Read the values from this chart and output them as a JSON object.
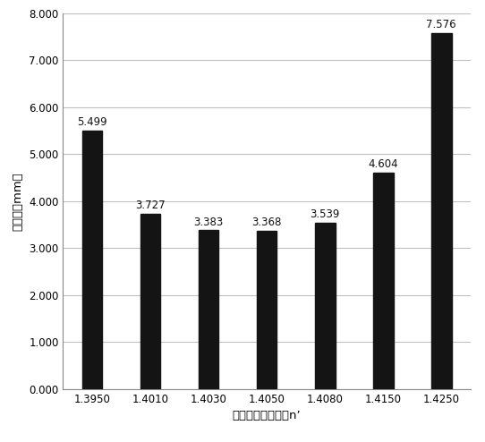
{
  "categories": [
    "1.3950",
    "1.4010",
    "1.4030",
    "1.4050",
    "1.4080",
    "1.4150",
    "1.4250"
  ],
  "values": [
    5.499,
    3.727,
    3.383,
    3.368,
    3.539,
    4.604,
    7.576
  ],
  "bar_color": "#141414",
  "xlabel": "液芯内液体折射率n’",
  "ylabel": "球差和（mm）",
  "ylim": [
    0,
    8.0
  ],
  "yticks": [
    0.0,
    1.0,
    2.0,
    3.0,
    4.0,
    5.0,
    6.0,
    7.0,
    8.0
  ],
  "ytick_labels": [
    "0.000",
    "1.000",
    "2.000",
    "3.000",
    "4.000",
    "5.000",
    "6.000",
    "7.000",
    "8.000"
  ],
  "background_color": "#ffffff",
  "bar_width": 0.35,
  "label_fontsize": 8.5,
  "axis_fontsize": 9.5,
  "tick_fontsize": 8.5,
  "grid_color": "#c0c0c0",
  "grid_linewidth": 0.8
}
